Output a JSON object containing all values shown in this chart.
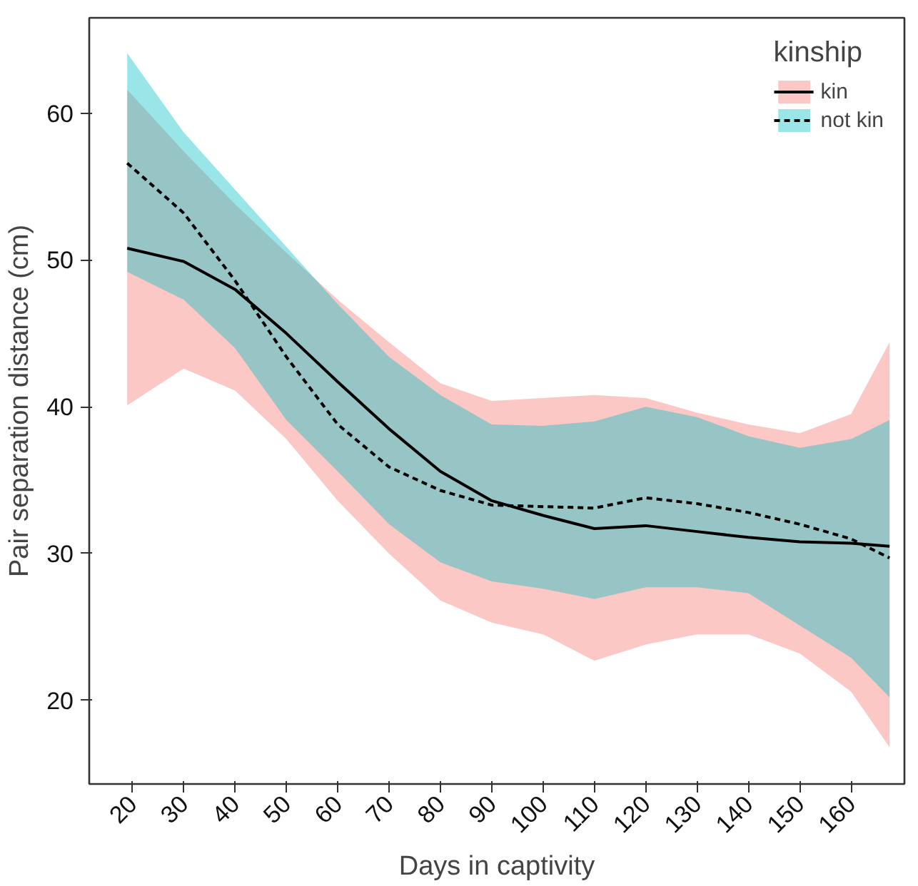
{
  "chart_data": {
    "type": "line",
    "xlabel": "Days in captivity",
    "ylabel": "Pair separation distance (cm)",
    "legend_title": "kinship",
    "legend": "top right",
    "grid": false,
    "xlim": [
      11.6,
      170.4
    ],
    "ylim": [
      14.3,
      66.5
    ],
    "xticks": [
      20,
      30,
      40,
      50,
      60,
      70,
      80,
      90,
      100,
      110,
      120,
      130,
      140,
      150,
      160
    ],
    "yticks": [
      20,
      30,
      40,
      50,
      60
    ],
    "colors": [
      "#f8766d",
      "#00bfc4"
    ],
    "x": [
      19,
      30,
      40,
      50,
      60,
      70,
      80,
      90,
      100,
      110,
      120,
      130,
      140,
      150,
      160,
      167.5
    ],
    "series": [
      {
        "name": "kin",
        "color": "#000000",
        "line_style": "solid",
        "values": [
          50.8,
          49.9,
          48.0,
          45.0,
          41.7,
          38.5,
          35.6,
          33.6,
          32.6,
          31.7,
          31.9,
          31.5,
          31.1,
          30.8,
          30.7,
          30.5
        ],
        "lower": [
          40.1,
          42.6,
          41.1,
          37.8,
          33.6,
          30.0,
          26.8,
          25.3,
          24.5,
          22.7,
          23.8,
          24.5,
          24.5,
          23.2,
          20.6,
          16.8
        ],
        "upper": [
          61.6,
          57.4,
          53.8,
          50.5,
          47.3,
          44.4,
          41.6,
          40.4,
          40.6,
          40.8,
          40.6,
          39.6,
          38.8,
          38.2,
          39.5,
          44.4
        ]
      },
      {
        "name": "not kin",
        "color": "#000000",
        "line_style": "dashed",
        "values": [
          56.6,
          53.2,
          48.6,
          43.4,
          38.8,
          35.9,
          34.3,
          33.3,
          33.2,
          33.1,
          33.8,
          33.4,
          32.8,
          32.0,
          31.0,
          29.7
        ],
        "lower": [
          49.2,
          47.3,
          44.0,
          39.1,
          35.6,
          32.0,
          29.4,
          28.1,
          27.6,
          26.9,
          27.7,
          27.7,
          27.3,
          25.1,
          22.9,
          20.2
        ],
        "upper": [
          64.1,
          58.7,
          54.8,
          50.9,
          47.0,
          43.4,
          40.8,
          38.8,
          38.7,
          39.0,
          40.0,
          39.3,
          38.0,
          37.2,
          37.8,
          39.1
        ]
      }
    ]
  }
}
